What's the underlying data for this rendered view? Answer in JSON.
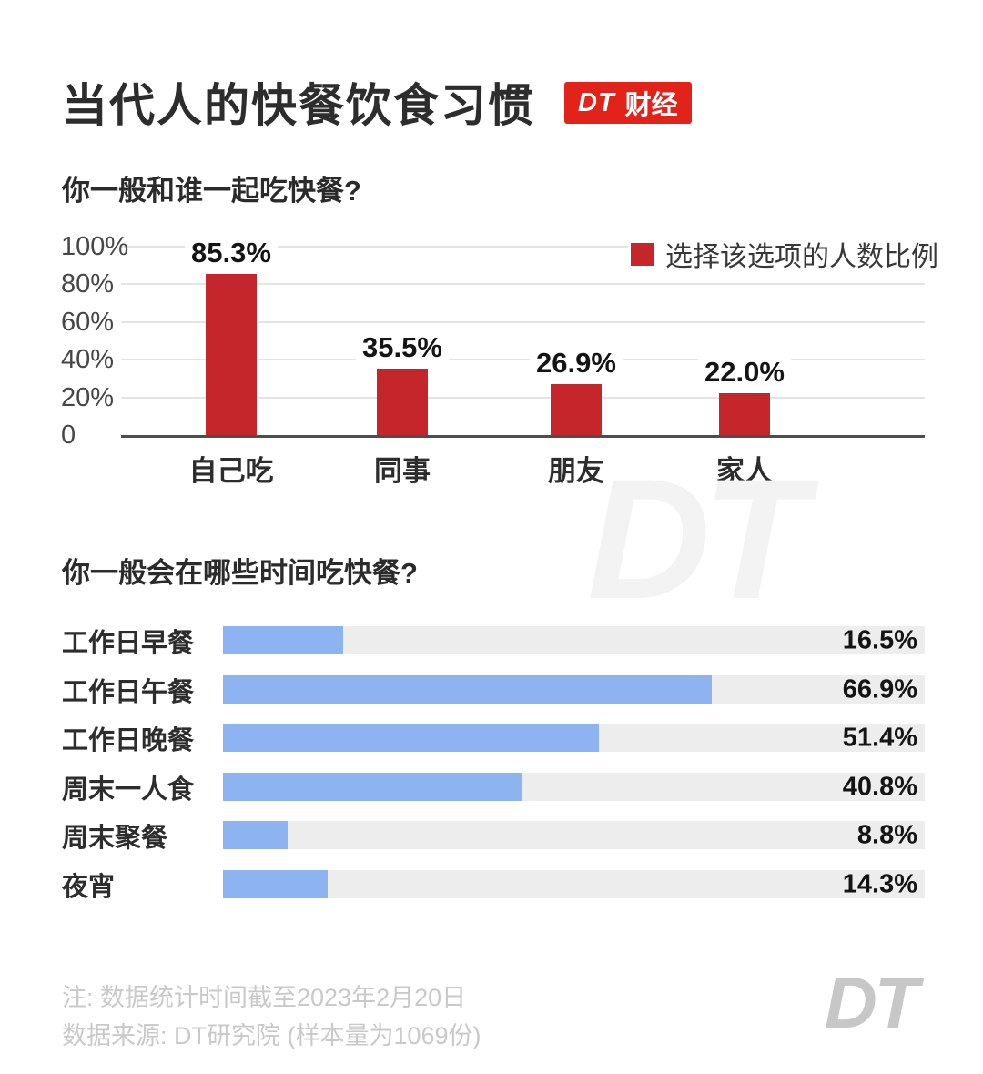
{
  "header": {
    "title": "当代人的快餐饮食习惯",
    "badge": {
      "logo": "DT",
      "label": "财经"
    }
  },
  "legend": {
    "label": "选择该选项的人数比例",
    "swatch_color": "#c5262b"
  },
  "watermark": {
    "text": "DT"
  },
  "footer": {
    "note_line1": "注: 数据统计时间截至2023年2月20日",
    "note_line2": "数据来源: DT研究院 (样本量为1069份)",
    "logo": "DT"
  },
  "colors": {
    "bar_red": "#c5262b",
    "badge_red": "#e2231a",
    "bar_blue": "#8db4f1",
    "track_gray": "#ededed",
    "gridline": "#e4e4e4",
    "axis": "#4d4d4d"
  },
  "chart_data": [
    {
      "type": "bar",
      "title": "你一般和谁一起吃快餐?",
      "categories": [
        "自己吃",
        "同事",
        "朋友",
        "家人"
      ],
      "values": [
        85.3,
        35.5,
        26.9,
        22.0
      ],
      "value_labels": [
        "85.3%",
        "35.5%",
        "26.9%",
        "22.0%"
      ],
      "unit": "%",
      "xlabel": "",
      "ylabel": "",
      "ylim": [
        0,
        100
      ],
      "yticks": [
        {
          "value": 100,
          "label": "100%"
        },
        {
          "value": 80,
          "label": "80%"
        },
        {
          "value": 60,
          "label": "60%"
        },
        {
          "value": 40,
          "label": "40%"
        },
        {
          "value": 20,
          "label": "20%"
        },
        {
          "value": 0,
          "label": "0"
        }
      ],
      "legend": [
        "选择该选项的人数比例"
      ],
      "legend_position": "top-right",
      "grid": true,
      "bar_color": "#c5262b"
    },
    {
      "type": "bar",
      "orientation": "horizontal",
      "title": "你一般会在哪些时间吃快餐?",
      "categories": [
        "工作日早餐",
        "工作日午餐",
        "工作日晚餐",
        "周末一人食",
        "周末聚餐",
        "夜宵"
      ],
      "values": [
        16.5,
        66.9,
        51.4,
        40.8,
        8.8,
        14.3
      ],
      "value_labels": [
        "16.5%",
        "66.9%",
        "51.4%",
        "40.8%",
        "8.8%",
        "14.3%"
      ],
      "unit": "%",
      "xlim": [
        0,
        100
      ],
      "grid": false,
      "bar_color": "#8db4f1",
      "track_color": "#ededed"
    }
  ]
}
